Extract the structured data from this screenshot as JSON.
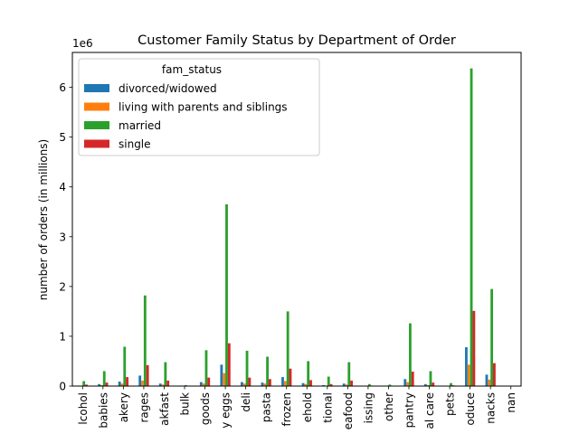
{
  "chart_data": {
    "type": "bar",
    "title": "Customer Family Status by Department of Order",
    "xlabel": "",
    "ylabel": "number of orders (in millions)",
    "offset_label": "1e6",
    "ylim": [
      0,
      6.7
    ],
    "yticks": [
      0,
      1,
      2,
      3,
      4,
      5,
      6
    ],
    "grid": false,
    "legend": {
      "title": "fam_status",
      "placement": "upper left"
    },
    "categories": [
      "alcohol",
      "babies",
      "bakery",
      "beverages",
      "breakfast",
      "bulk",
      "canned goods",
      "dairy eggs",
      "deli",
      "dry goods pasta",
      "frozen",
      "household",
      "international",
      "meat seafood",
      "missing",
      "other",
      "pantry",
      "personal care",
      "pets",
      "produce",
      "snacks",
      "nan"
    ],
    "tick_labels": [
      "lcohol",
      "babies",
      "akery",
      "rages",
      "akfast",
      "bulk",
      "goods",
      "y eggs",
      "deli",
      "pasta",
      "frozen",
      "ehold",
      "tional",
      "eafood",
      "issing",
      "other",
      "pantry",
      "al care",
      "pets",
      "oduce",
      "nacks",
      "nan"
    ],
    "series": [
      {
        "name": "divorced/widowed",
        "color": "#1f77b4",
        "values": [
          0.01,
          0.04,
          0.09,
          0.21,
          0.05,
          0.01,
          0.08,
          0.43,
          0.08,
          0.07,
          0.18,
          0.06,
          0.02,
          0.05,
          0.005,
          0.003,
          0.14,
          0.04,
          0.008,
          0.78,
          0.23,
          0
        ]
      },
      {
        "name": "living with parents and siblings",
        "color": "#ff7f0e",
        "values": [
          0.005,
          0.02,
          0.05,
          0.11,
          0.03,
          0.003,
          0.05,
          0.26,
          0.05,
          0.05,
          0.1,
          0.04,
          0.01,
          0.03,
          0.003,
          0.002,
          0.08,
          0.02,
          0.005,
          0.43,
          0.13,
          0
        ]
      },
      {
        "name": "married",
        "color": "#2ca02c",
        "values": [
          0.1,
          0.3,
          0.79,
          1.82,
          0.48,
          0.02,
          0.72,
          3.65,
          0.71,
          0.59,
          1.5,
          0.5,
          0.19,
          0.48,
          0.04,
          0.03,
          1.26,
          0.3,
          0.06,
          6.38,
          1.95,
          0
        ]
      },
      {
        "name": "single",
        "color": "#d62728",
        "values": [
          0.03,
          0.07,
          0.18,
          0.42,
          0.11,
          0.005,
          0.17,
          0.86,
          0.17,
          0.14,
          0.35,
          0.12,
          0.04,
          0.11,
          0.01,
          0.007,
          0.29,
          0.07,
          0.015,
          1.51,
          0.46,
          0
        ]
      }
    ]
  }
}
